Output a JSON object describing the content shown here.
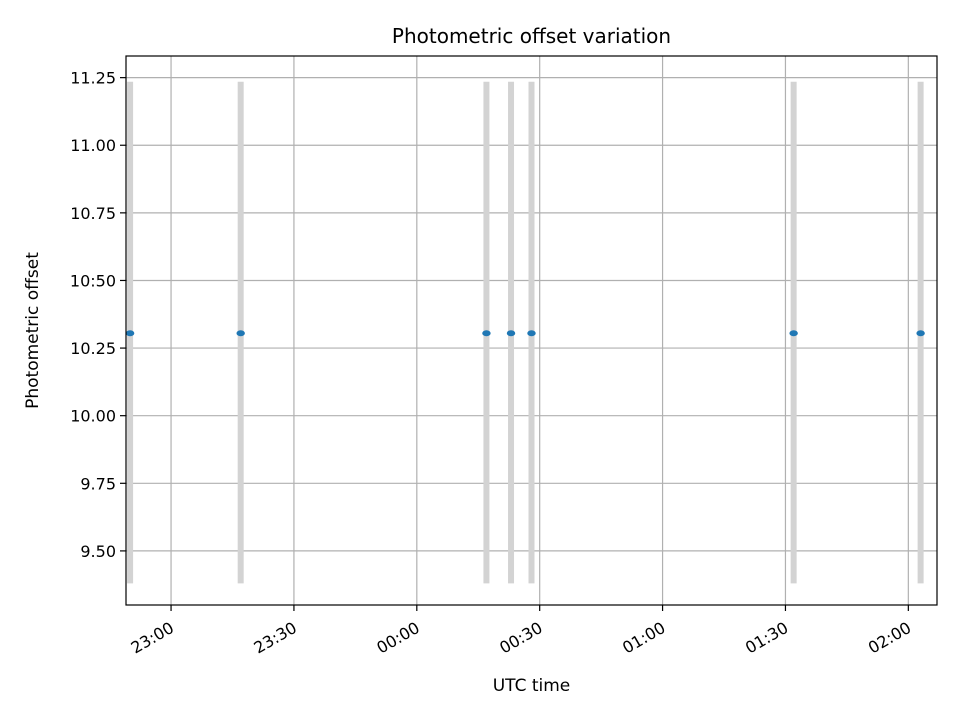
{
  "chart_data": {
    "type": "scatter",
    "title": "Photometric offset variation",
    "xlabel": "UTC time",
    "ylabel": "Photometric offset",
    "grid": true,
    "legend": "none",
    "x_unit": "UTC time (HH:MM)",
    "xlim": [
      "22:49",
      "02:07"
    ],
    "ylim": [
      9.3,
      11.33
    ],
    "x_ticks": [
      "23:00",
      "23:30",
      "00:00",
      "00:30",
      "01:00",
      "01:30",
      "02:00"
    ],
    "y_ticks": [
      "9.50",
      "9.75",
      "10.00",
      "10.25",
      "10:50",
      "10.75",
      "11.00",
      "11.25"
    ],
    "series": [
      {
        "color": "#1f77b4",
        "error_color": "#d3d3d3",
        "points": [
          {
            "x": "22:50",
            "y": 10.305,
            "y_low": 9.38,
            "y_high": 11.235
          },
          {
            "x": "23:17",
            "y": 10.305,
            "y_low": 9.38,
            "y_high": 11.235
          },
          {
            "x": "00:17",
            "y": 10.305,
            "y_low": 9.38,
            "y_high": 11.235
          },
          {
            "x": "00:23",
            "y": 10.305,
            "y_low": 9.38,
            "y_high": 11.235
          },
          {
            "x": "00:28",
            "y": 10.305,
            "y_low": 9.38,
            "y_high": 11.235
          },
          {
            "x": "01:32",
            "y": 10.305,
            "y_low": 9.38,
            "y_high": 11.235
          },
          {
            "x": "02:03",
            "y": 10.305,
            "y_low": 9.38,
            "y_high": 11.235
          }
        ]
      }
    ]
  }
}
